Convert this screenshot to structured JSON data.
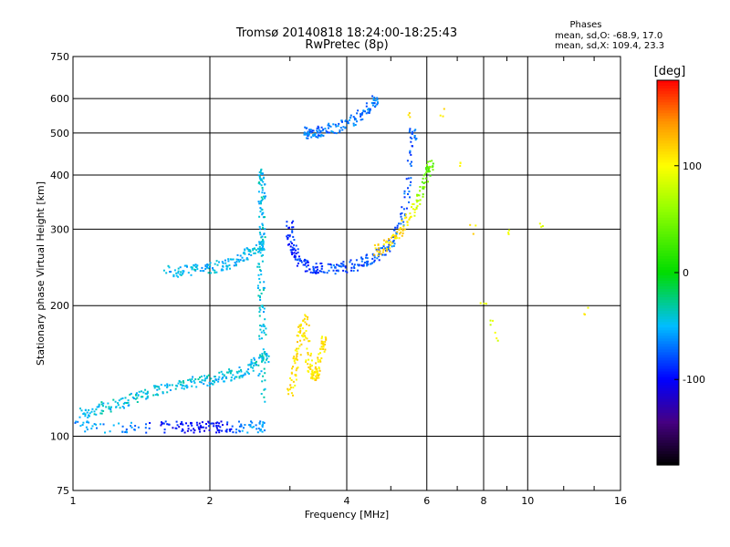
{
  "chart_data": {
    "type": "scatter",
    "title": "Tromsø 20140818 18:24:00-18:25:43",
    "subtitle": "RwPretec (8p)",
    "xlabel": "Frequency [MHz]",
    "ylabel": "Stationary phase Virtual Height [km]",
    "xscale": "log",
    "yscale": "log",
    "xlim": [
      1,
      16
    ],
    "ylim": [
      75,
      750
    ],
    "xticks": [
      1,
      2,
      4,
      6,
      8,
      10,
      16
    ],
    "yticks": [
      75,
      100,
      200,
      300,
      400,
      500,
      600,
      750
    ],
    "grid": true,
    "phase_stats": {
      "title": "Phases",
      "line1": "mean, sd,O: -68.9, 17.0",
      "line2": "mean, sd,X: 109.4, 23.3"
    },
    "colorbar": {
      "label": "[deg]",
      "range": [
        -180,
        180
      ],
      "ticks": [
        100,
        0,
        -100
      ]
    },
    "series": [
      {
        "x": [
          1.02,
          1.08,
          1.15,
          1.22,
          1.3,
          1.38,
          1.45,
          1.55,
          1.65,
          1.75,
          1.85,
          1.95,
          2.05,
          2.15,
          2.25,
          2.35,
          2.45,
          2.55,
          2.65
        ],
        "y": [
          112,
          114,
          116,
          118,
          120,
          123,
          125,
          128,
          130,
          131,
          133,
          134,
          135,
          137,
          139,
          141,
          144,
          148,
          152
        ],
        "phase": [
          -45,
          -45,
          -45,
          -45,
          -45,
          -45,
          -45,
          -45,
          -45,
          -45,
          -45,
          -45,
          -45,
          -45,
          -45,
          -45,
          -45,
          -45,
          -45
        ]
      },
      {
        "x": [
          1.6,
          1.7,
          1.8,
          1.9,
          2.0,
          2.1,
          2.2,
          2.3,
          2.4,
          2.5,
          2.6
        ],
        "y": [
          240,
          240,
          240,
          242,
          244,
          246,
          250,
          256,
          262,
          268,
          275
        ],
        "phase": [
          -50,
          -50,
          -50,
          -50,
          -50,
          -50,
          -50,
          -50,
          -50,
          -50,
          -50
        ]
      },
      {
        "x": [
          1.02,
          1.1,
          1.3,
          1.5,
          1.7,
          1.8,
          1.9,
          2.0,
          2.1,
          2.2,
          2.4,
          2.6
        ],
        "y": [
          105,
          105,
          105,
          105,
          105,
          105,
          105,
          105,
          105,
          105,
          105,
          105
        ],
        "phase": [
          -60,
          -60,
          -60,
          -90,
          -100,
          -100,
          -100,
          -100,
          -100,
          -90,
          -60,
          -60
        ]
      },
      {
        "x": [
          2.6,
          2.6,
          2.62,
          2.6,
          2.58,
          2.6,
          2.62,
          2.6,
          2.61,
          2.6
        ],
        "y": [
          120,
          150,
          180,
          210,
          240,
          270,
          300,
          330,
          360,
          400
        ],
        "phase": [
          -45,
          -45,
          -45,
          -45,
          -45,
          -45,
          -45,
          -45,
          -45,
          -45
        ]
      },
      {
        "x": [
          3.0,
          3.0,
          3.05,
          3.1,
          3.2,
          3.3,
          3.45,
          3.6,
          3.8,
          4.0,
          4.2,
          4.4,
          4.6,
          4.8,
          5.0,
          5.2,
          5.4,
          5.5,
          5.6
        ],
        "y": [
          310,
          290,
          270,
          260,
          250,
          246,
          244,
          243,
          244,
          246,
          248,
          252,
          258,
          266,
          278,
          300,
          340,
          400,
          500
        ],
        "phase": [
          -90,
          -90,
          -90,
          -90,
          -85,
          -85,
          -85,
          -85,
          -80,
          -80,
          -80,
          -80,
          -80,
          -75,
          -75,
          -75,
          -75,
          -75,
          -75
        ]
      },
      {
        "x": [
          3.2,
          3.3,
          3.4,
          3.5,
          3.6,
          3.8,
          4.0,
          4.2,
          4.4,
          4.6
        ],
        "y": [
          500,
          500,
          500,
          505,
          510,
          515,
          525,
          540,
          560,
          590
        ],
        "phase": [
          -70,
          -70,
          -70,
          -70,
          -70,
          -70,
          -70,
          -70,
          -70,
          -70
        ]
      },
      {
        "x": [
          3.0,
          3.05,
          3.1,
          3.15,
          3.2,
          3.25,
          3.3,
          3.35,
          3.4,
          3.45,
          3.5,
          3.55
        ],
        "y": [
          125,
          135,
          150,
          165,
          178,
          190,
          150,
          140,
          135,
          140,
          150,
          165
        ],
        "phase": [
          110,
          110,
          110,
          110,
          110,
          110,
          110,
          110,
          110,
          110,
          110,
          110
        ]
      },
      {
        "x": [
          4.6,
          4.8,
          5.0,
          5.2,
          5.4,
          5.6,
          5.8,
          6.0,
          6.1
        ],
        "y": [
          266,
          272,
          280,
          290,
          310,
          330,
          360,
          390,
          420
        ],
        "phase": [
          115,
          115,
          110,
          110,
          110,
          90,
          60,
          40,
          40
        ]
      },
      {
        "x": [
          5.5,
          6.5,
          7.0,
          7.6,
          8.0,
          8.3,
          8.6,
          9.2,
          10.8,
          13.5
        ],
        "y": [
          560,
          560,
          420,
          300,
          200,
          180,
          170,
          300,
          300,
          195
        ],
        "phase": [
          110,
          110,
          110,
          110,
          90,
          90,
          90,
          90,
          90,
          110
        ]
      }
    ]
  }
}
